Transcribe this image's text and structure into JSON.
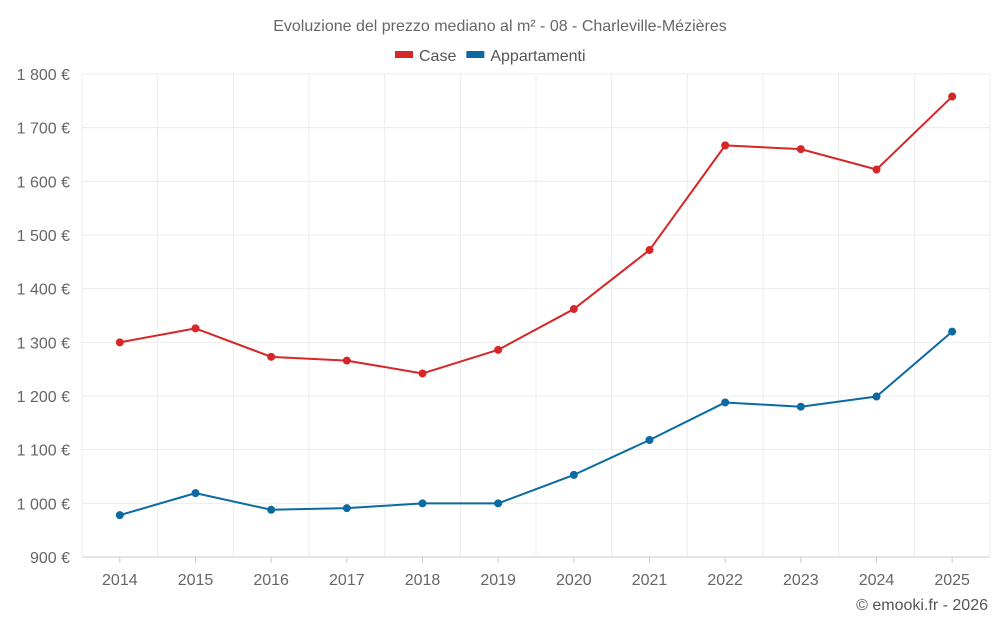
{
  "chart_data": {
    "type": "line",
    "title": "Evoluzione del prezzo mediano al m² - 08 - Charleville-Mézières",
    "categories": [
      "2014",
      "2015",
      "2016",
      "2017",
      "2018",
      "2019",
      "2020",
      "2021",
      "2022",
      "2023",
      "2024",
      "2025"
    ],
    "series": [
      {
        "name": "Case",
        "color": "#d62728",
        "values": [
          1300,
          1326,
          1273,
          1266,
          1242,
          1286,
          1362,
          1472,
          1667,
          1660,
          1622,
          1758
        ]
      },
      {
        "name": "Appartamenti",
        "color": "#0b6aa2",
        "values": [
          978,
          1019,
          988,
          991,
          1000,
          1000,
          1053,
          1118,
          1188,
          1180,
          1199,
          1320
        ]
      }
    ],
    "ylim": [
      900,
      1800
    ],
    "yticks": [
      900,
      1000,
      1100,
      1200,
      1300,
      1400,
      1500,
      1600,
      1700,
      1800
    ],
    "ytick_labels": [
      "900 €",
      "1 000 €",
      "1 100 €",
      "1 200 €",
      "1 300 €",
      "1 400 €",
      "1 500 €",
      "1 600 €",
      "1 700 €",
      "1 800 €"
    ],
    "xlabel": "",
    "ylabel": "",
    "grid": true,
    "legend": "top-center",
    "credit": "© emooki.fr - 2026"
  }
}
